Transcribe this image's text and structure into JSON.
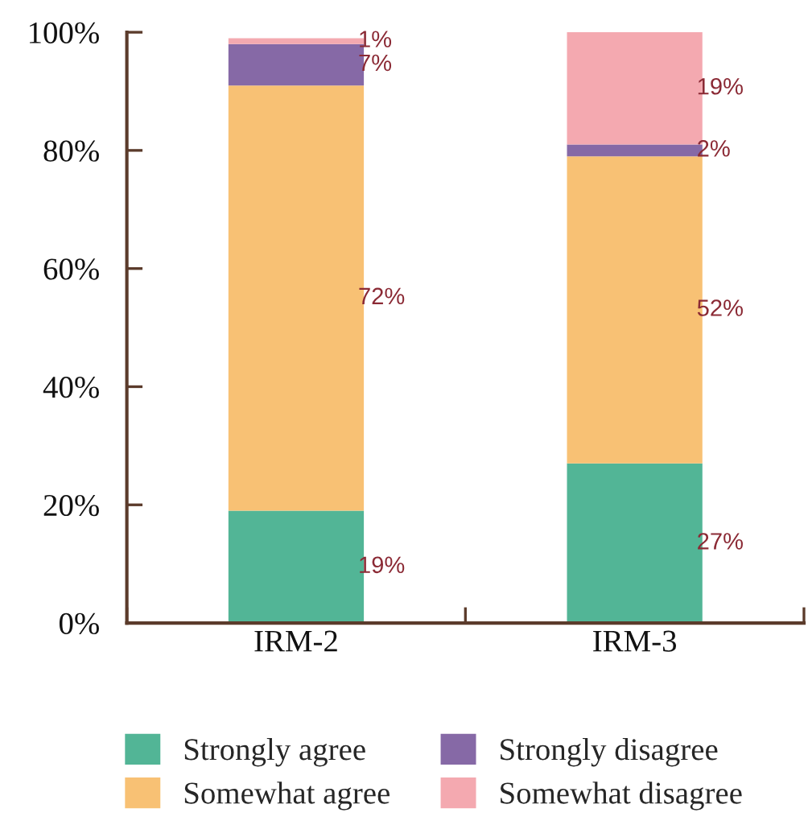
{
  "chart_data": {
    "type": "bar",
    "stacked": true,
    "categories": [
      "IRM-2",
      "IRM-3"
    ],
    "series": [
      {
        "name": "Strongly agree",
        "color": "#52b596",
        "values": [
          19,
          27
        ],
        "value_labels": [
          "19%",
          "27%"
        ]
      },
      {
        "name": "Somewhat agree",
        "color": "#f8c174",
        "values": [
          72,
          52
        ],
        "value_labels": [
          "72%",
          "52%"
        ]
      },
      {
        "name": "Strongly disagree",
        "color": "#8669a6",
        "values": [
          7,
          2
        ],
        "value_labels": [
          "7%",
          "2%"
        ]
      },
      {
        "name": "Somewhat disagree",
        "color": "#f4a9b0",
        "values": [
          1,
          19
        ],
        "value_labels": [
          "1%",
          "19%"
        ]
      }
    ],
    "ylim": [
      0,
      100
    ],
    "yticks": [
      {
        "value": 0,
        "label": "0%"
      },
      {
        "value": 20,
        "label": "20%"
      },
      {
        "value": 40,
        "label": "40%"
      },
      {
        "value": 60,
        "label": "60%"
      },
      {
        "value": 80,
        "label": "80%"
      },
      {
        "value": 100,
        "label": "100%"
      }
    ],
    "legend": "bottom",
    "grid": false
  }
}
